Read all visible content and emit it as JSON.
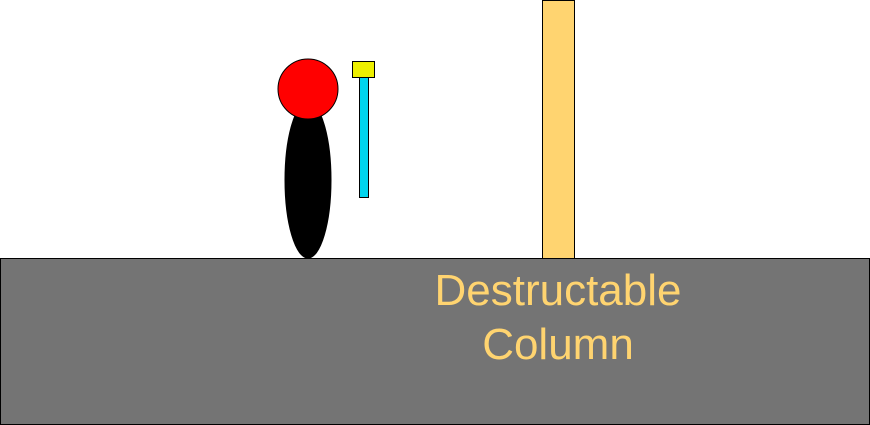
{
  "scene": {
    "label_line1": "Destructable",
    "label_line2": "Column"
  },
  "colors": {
    "background": "#ffffff",
    "ground": "#747474",
    "column": "#ffd470",
    "label_text": "#ffd470",
    "player_head": "#ff0000",
    "player_body": "#000000",
    "hammer_handle": "#00d4ee",
    "hammer_head": "#eef000"
  },
  "icons": {
    "player": "stick-figure",
    "weapon": "hammer",
    "obstacle": "column"
  }
}
